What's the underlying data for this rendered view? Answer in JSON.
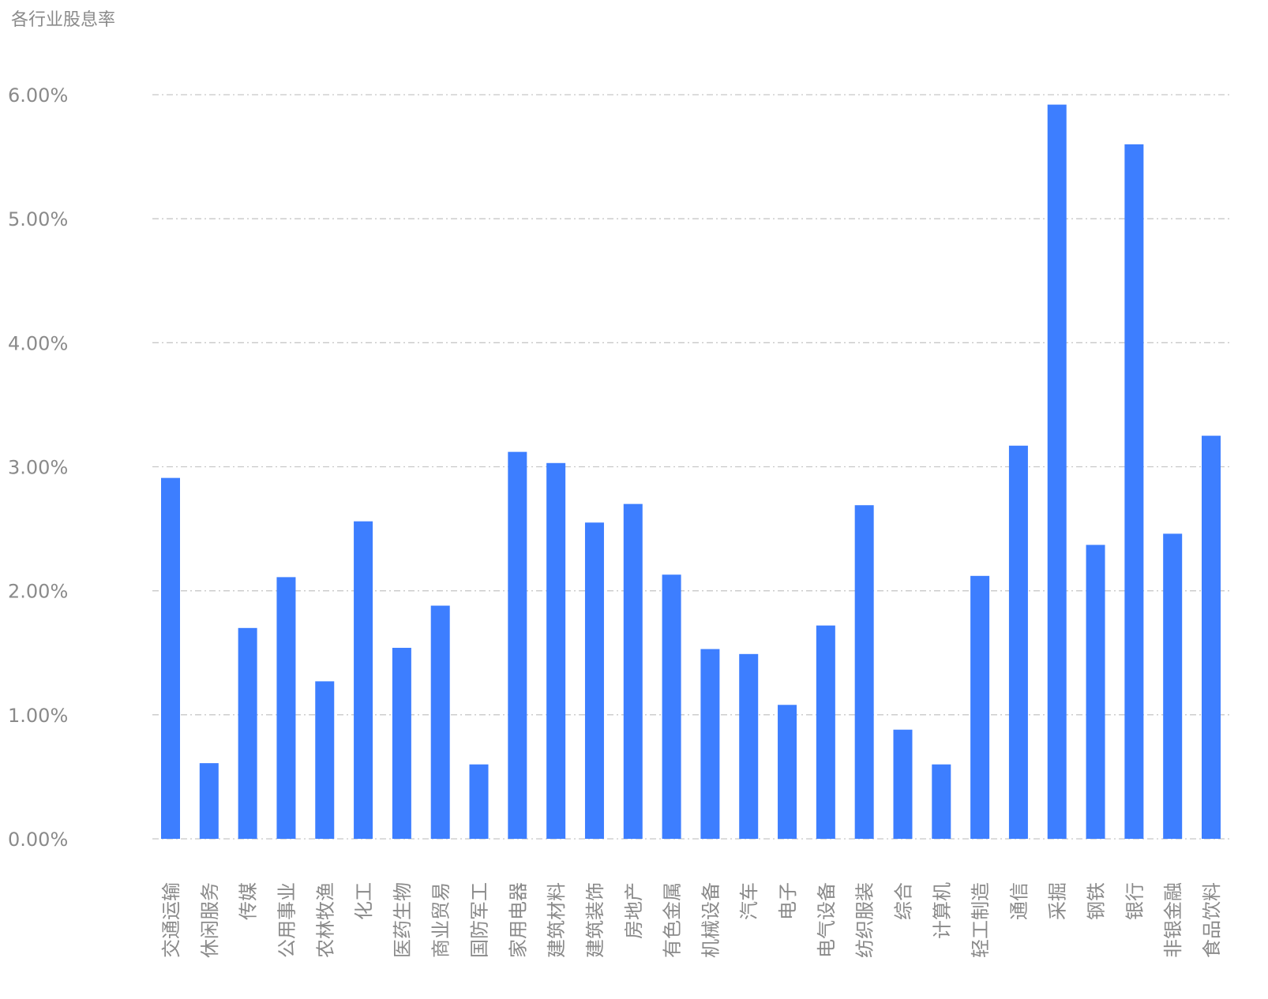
{
  "chart_data": {
    "type": "bar",
    "title": "各行业股息率",
    "xlabel": "",
    "ylabel": "",
    "ylim": [
      0,
      6
    ],
    "yticks": [
      "0.00%",
      "1.00%",
      "2.00%",
      "3.00%",
      "4.00%",
      "5.00%",
      "6.00%"
    ],
    "grid": true,
    "bar_color": "#3d7eff",
    "categories": [
      "交通运输",
      "休闲服务",
      "传媒",
      "公用事业",
      "农林牧渔",
      "化工",
      "医药生物",
      "商业贸易",
      "国防军工",
      "家用电器",
      "建筑材料",
      "建筑装饰",
      "房地产",
      "有色金属",
      "机械设备",
      "汽车",
      "电子",
      "电气设备",
      "纺织服装",
      "综合",
      "计算机",
      "轻工制造",
      "通信",
      "采掘",
      "钢铁",
      "银行",
      "非银金融",
      "食品饮料"
    ],
    "values": [
      2.91,
      0.61,
      1.7,
      2.11,
      1.27,
      2.56,
      1.54,
      1.88,
      0.6,
      3.12,
      3.03,
      2.55,
      2.7,
      2.13,
      1.53,
      1.49,
      1.08,
      1.72,
      2.69,
      0.88,
      0.6,
      2.12,
      3.17,
      5.92,
      2.37,
      5.6,
      2.46,
      3.25
    ]
  }
}
